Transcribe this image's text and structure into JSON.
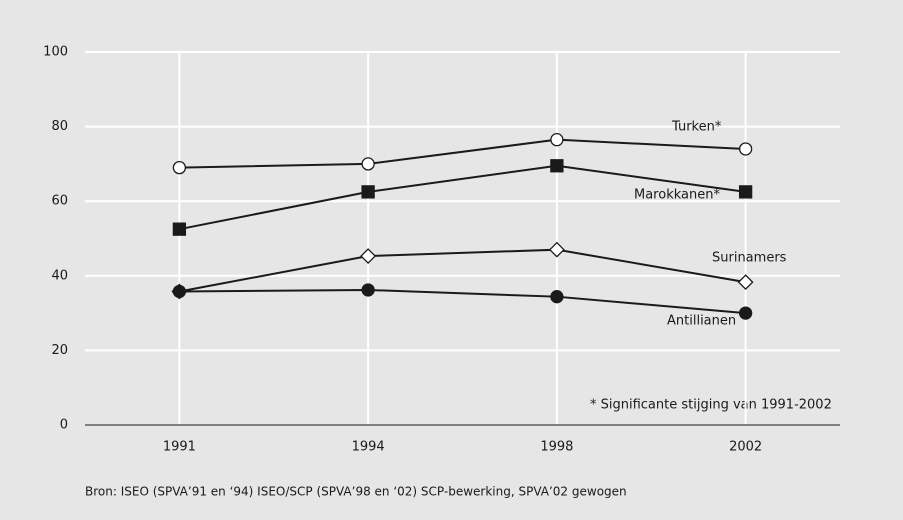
{
  "chart_data": {
    "type": "line",
    "categories": [
      "1991",
      "1994",
      "1998",
      "2002"
    ],
    "series": [
      {
        "name": "Turken*",
        "color": "#1a1a1a",
        "marker": "circle-open",
        "values": [
          69,
          70,
          76.5,
          74
        ]
      },
      {
        "name": "Marokkanen*",
        "color": "#1a1a1a",
        "marker": "square-filled",
        "values": [
          52.5,
          62.5,
          69.5,
          62.5
        ]
      },
      {
        "name": "Surinamers",
        "color": "#1a1a1a",
        "marker": "diamond-open",
        "values": [
          35.8,
          45.3,
          47,
          38.3
        ]
      },
      {
        "name": "Antillianen",
        "color": "#1a1a1a",
        "marker": "circle-filled",
        "values": [
          35.8,
          36.2,
          34.4,
          30
        ]
      }
    ],
    "ylim": [
      0,
      100
    ],
    "yticks": [
      0,
      20,
      40,
      60,
      80,
      100
    ],
    "grid": true,
    "annotation": "* Significante stijging van 1991-2002",
    "source": "Bron: ISEO (SPVA’91 en ‘94) ISEO/SCP (SPVA’98 en ‘02) SCP-bewerking, SPVA’02 gewogen"
  }
}
